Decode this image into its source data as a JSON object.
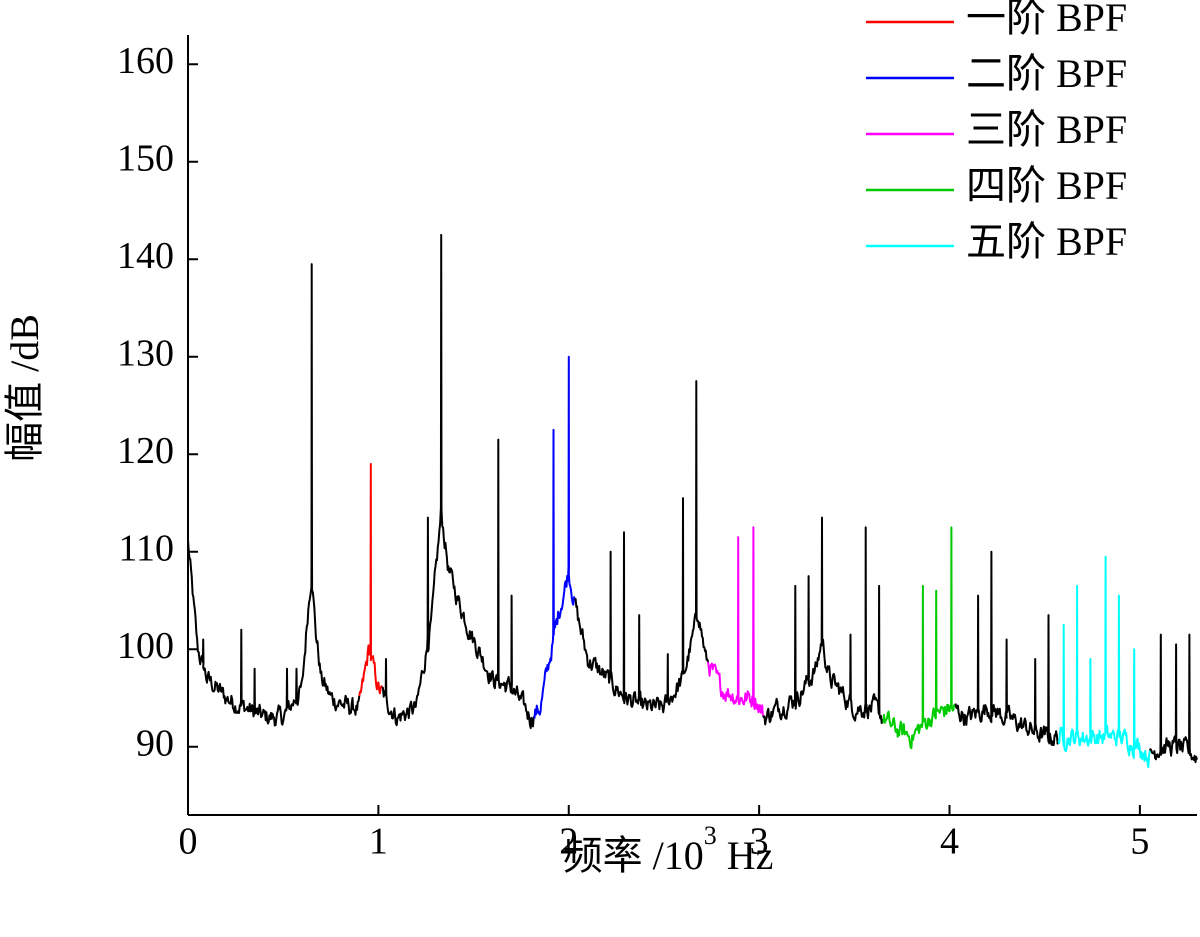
{
  "chart_data": {
    "type": "line",
    "xlabel_prefix": "频率 /10",
    "xlabel_exp": "3",
    "xlabel_suffix": " Hz",
    "ylabel": "幅值 /dB",
    "xlim": [
      0,
      5.3
    ],
    "ylim": [
      83,
      163
    ],
    "xticks": [
      0,
      1,
      2,
      3,
      4,
      5
    ],
    "yticks": [
      90,
      100,
      110,
      120,
      130,
      140,
      150,
      160
    ],
    "legend_position": "top-right",
    "baseline": [
      [
        0,
        111
      ],
      [
        0.05,
        100
      ],
      [
        0.1,
        97
      ],
      [
        0.15,
        96
      ],
      [
        0.2,
        95
      ],
      [
        0.3,
        94
      ],
      [
        0.4,
        93
      ],
      [
        0.5,
        93
      ],
      [
        0.6,
        96
      ],
      [
        0.63,
        104
      ],
      [
        0.65,
        108
      ],
      [
        0.67,
        102
      ],
      [
        0.7,
        97
      ],
      [
        0.75,
        95
      ],
      [
        0.85,
        94
      ],
      [
        0.9,
        94
      ],
      [
        0.95,
        100
      ],
      [
        1.0,
        96
      ],
      [
        1.1,
        93
      ],
      [
        1.2,
        94
      ],
      [
        1.28,
        103
      ],
      [
        1.33,
        114
      ],
      [
        1.37,
        108
      ],
      [
        1.42,
        105
      ],
      [
        1.5,
        101
      ],
      [
        1.6,
        97
      ],
      [
        1.7,
        96
      ],
      [
        1.8,
        93
      ],
      [
        1.85,
        94
      ],
      [
        1.9,
        99
      ],
      [
        1.95,
        104
      ],
      [
        2.0,
        108
      ],
      [
        2.05,
        103
      ],
      [
        2.1,
        99
      ],
      [
        2.2,
        97
      ],
      [
        2.3,
        95
      ],
      [
        2.4,
        94
      ],
      [
        2.5,
        94
      ],
      [
        2.6,
        97
      ],
      [
        2.65,
        101
      ],
      [
        2.68,
        104
      ],
      [
        2.72,
        99
      ],
      [
        2.8,
        96
      ],
      [
        2.9,
        95
      ],
      [
        2.98,
        95
      ],
      [
        3.03,
        93
      ],
      [
        3.1,
        94
      ],
      [
        3.2,
        95
      ],
      [
        3.3,
        98
      ],
      [
        3.33,
        101
      ],
      [
        3.37,
        97
      ],
      [
        3.5,
        94
      ],
      [
        3.6,
        94
      ],
      [
        3.7,
        92
      ],
      [
        3.8,
        91
      ],
      [
        3.9,
        93
      ],
      [
        4.0,
        94
      ],
      [
        4.1,
        93
      ],
      [
        4.2,
        94
      ],
      [
        4.3,
        93
      ],
      [
        4.4,
        92
      ],
      [
        4.5,
        91
      ],
      [
        4.6,
        91
      ],
      [
        4.7,
        91
      ],
      [
        4.8,
        91
      ],
      [
        4.9,
        91
      ],
      [
        5.0,
        90
      ],
      [
        5.05,
        89
      ],
      [
        5.1,
        90
      ],
      [
        5.2,
        90
      ],
      [
        5.3,
        89
      ]
    ],
    "spikes": [
      [
        0.08,
        101
      ],
      [
        0.28,
        102
      ],
      [
        0.35,
        98
      ],
      [
        0.52,
        98
      ],
      [
        0.57,
        98
      ],
      [
        0.65,
        139.5
      ],
      [
        0.96,
        119
      ],
      [
        1.04,
        99
      ],
      [
        1.26,
        113.5
      ],
      [
        1.33,
        142.5
      ],
      [
        1.63,
        121.5
      ],
      [
        1.7,
        105.5
      ],
      [
        1.92,
        122.5
      ],
      [
        2.0,
        130
      ],
      [
        2.22,
        110
      ],
      [
        2.29,
        112
      ],
      [
        2.37,
        103.5
      ],
      [
        2.52,
        99.5
      ],
      [
        2.6,
        115.5
      ],
      [
        2.67,
        127.5
      ],
      [
        2.89,
        111.5
      ],
      [
        2.97,
        112.5
      ],
      [
        3.19,
        106.5
      ],
      [
        3.26,
        107.5
      ],
      [
        3.33,
        113.5
      ],
      [
        3.48,
        101.5
      ],
      [
        3.56,
        112.5
      ],
      [
        3.63,
        106.5
      ],
      [
        3.86,
        106.5
      ],
      [
        3.93,
        106
      ],
      [
        4.01,
        112.5
      ],
      [
        4.15,
        105.5
      ],
      [
        4.22,
        110
      ],
      [
        4.3,
        101
      ],
      [
        4.45,
        99
      ],
      [
        4.52,
        103.5
      ],
      [
        4.6,
        102.5
      ],
      [
        4.67,
        106.5
      ],
      [
        4.74,
        99
      ],
      [
        4.82,
        109.5
      ],
      [
        4.89,
        105.5
      ],
      [
        4.97,
        100
      ],
      [
        5.11,
        101.5
      ],
      [
        5.19,
        100.5
      ],
      [
        5.26,
        101.5
      ]
    ],
    "series": [
      {
        "name": "一阶 BPF",
        "color": "#ff0000",
        "x_range": [
          0.9,
          1.02
        ]
      },
      {
        "name": "二阶 BPF",
        "color": "#0000ff",
        "x_range": [
          1.82,
          2.03
        ]
      },
      {
        "name": "三阶 BPF",
        "color": "#ff00ff",
        "x_range": [
          2.73,
          3.02
        ]
      },
      {
        "name": "四阶 BPF",
        "color": "#00cc00",
        "x_range": [
          3.65,
          4.03
        ]
      },
      {
        "name": "五阶 BPF",
        "color": "#00ffff",
        "x_range": [
          4.57,
          5.05
        ]
      }
    ],
    "base_color": "#000000"
  }
}
